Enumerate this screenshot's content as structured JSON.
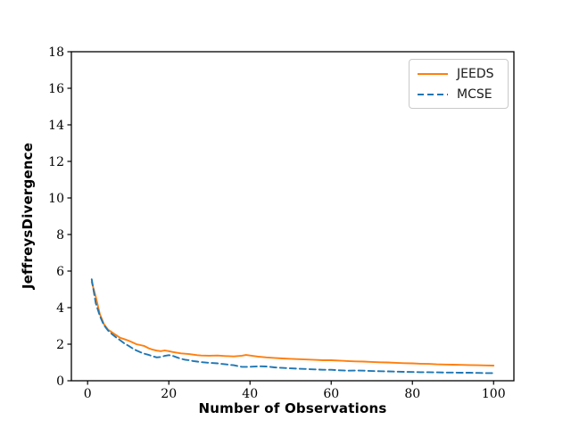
{
  "figure": {
    "background": "#ffffff"
  },
  "chart_data": {
    "type": "line",
    "title": "",
    "xlabel": "Number of Observations",
    "ylabel": "JeffreysDivergence",
    "xlim": [
      -4,
      105
    ],
    "ylim": [
      0,
      18
    ],
    "xticks": [
      0,
      20,
      40,
      60,
      80,
      100
    ],
    "yticks": [
      0,
      2,
      4,
      6,
      8,
      10,
      12,
      14,
      16,
      18
    ],
    "grid": false,
    "legend_position": "upper right",
    "axis_color": "#000000",
    "series": [
      {
        "name": "JEEDS",
        "color": "#ff7f0e",
        "line_style": "solid",
        "dash": null,
        "x": [
          1,
          2,
          3,
          4,
          5,
          6,
          7,
          8,
          9,
          10,
          11,
          12,
          13,
          14,
          15,
          16,
          17,
          18,
          19,
          20,
          21,
          22,
          23,
          24,
          25,
          26,
          27,
          28,
          30,
          32,
          34,
          36,
          38,
          39,
          40,
          42,
          44,
          46,
          48,
          50,
          52,
          54,
          56,
          58,
          60,
          62,
          64,
          66,
          68,
          70,
          72,
          74,
          76,
          78,
          80,
          82,
          84,
          86,
          88,
          90,
          92,
          94,
          96,
          98,
          100
        ],
        "y": [
          5.4,
          4.6,
          3.65,
          3.1,
          2.8,
          2.65,
          2.5,
          2.35,
          2.28,
          2.2,
          2.1,
          2.0,
          1.95,
          1.9,
          1.78,
          1.7,
          1.65,
          1.62,
          1.66,
          1.62,
          1.57,
          1.53,
          1.5,
          1.48,
          1.46,
          1.43,
          1.4,
          1.38,
          1.37,
          1.38,
          1.35,
          1.33,
          1.37,
          1.41,
          1.38,
          1.32,
          1.28,
          1.25,
          1.22,
          1.2,
          1.18,
          1.16,
          1.14,
          1.12,
          1.12,
          1.1,
          1.08,
          1.06,
          1.05,
          1.03,
          1.01,
          1.0,
          0.98,
          0.96,
          0.95,
          0.93,
          0.92,
          0.9,
          0.89,
          0.88,
          0.87,
          0.86,
          0.85,
          0.84,
          0.83
        ]
      },
      {
        "name": "MCSE",
        "color": "#1f77b4",
        "line_style": "dashed",
        "dash": "7 4",
        "x": [
          1,
          2,
          3,
          4,
          5,
          6,
          7,
          8,
          9,
          10,
          11,
          12,
          13,
          14,
          15,
          16,
          17,
          18,
          19,
          20,
          21,
          22,
          23,
          24,
          25,
          26,
          27,
          28,
          30,
          32,
          34,
          36,
          38,
          40,
          42,
          44,
          46,
          48,
          50,
          52,
          54,
          56,
          58,
          60,
          62,
          64,
          66,
          68,
          70,
          72,
          74,
          76,
          78,
          80,
          82,
          84,
          86,
          88,
          90,
          92,
          94,
          96,
          98,
          100
        ],
        "y": [
          5.55,
          4.25,
          3.55,
          3.05,
          2.75,
          2.55,
          2.37,
          2.22,
          2.05,
          1.92,
          1.78,
          1.66,
          1.56,
          1.48,
          1.42,
          1.34,
          1.28,
          1.3,
          1.36,
          1.4,
          1.36,
          1.28,
          1.2,
          1.15,
          1.12,
          1.08,
          1.05,
          1.02,
          0.98,
          0.95,
          0.9,
          0.85,
          0.76,
          0.76,
          0.79,
          0.78,
          0.73,
          0.7,
          0.68,
          0.66,
          0.64,
          0.62,
          0.6,
          0.6,
          0.57,
          0.55,
          0.56,
          0.55,
          0.53,
          0.52,
          0.51,
          0.5,
          0.49,
          0.48,
          0.47,
          0.47,
          0.46,
          0.45,
          0.45,
          0.44,
          0.44,
          0.43,
          0.42,
          0.42
        ]
      }
    ]
  }
}
